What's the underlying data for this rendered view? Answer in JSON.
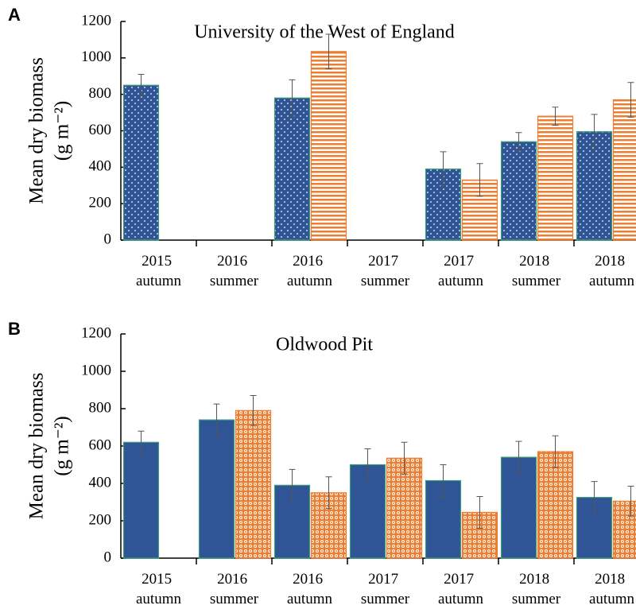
{
  "chart_data": [
    {
      "type": "bar",
      "panel": "A",
      "title": "University of the West of England",
      "ylabel": [
        "Mean dry biomass",
        "(g m⁻²)"
      ],
      "categories": [
        "2015 autumn",
        "2016 summer",
        "2016 autumn",
        "2017 summer",
        "2017 autumn",
        "2018 summer",
        "2018 autumn"
      ],
      "series": [
        {
          "color": "#2f5597",
          "pattern": "dots",
          "values": [
            850,
            null,
            780,
            null,
            390,
            540,
            595
          ],
          "errors": [
            60,
            null,
            100,
            null,
            95,
            50,
            95
          ]
        },
        {
          "color": "#ed7d31",
          "pattern": "hstripes",
          "values": [
            null,
            null,
            1035,
            null,
            330,
            680,
            770
          ],
          "errors": [
            null,
            null,
            95,
            null,
            90,
            50,
            95
          ]
        }
      ],
      "ylim": [
        0,
        1200
      ],
      "yticks": [
        0,
        200,
        400,
        600,
        800,
        1000,
        1200
      ]
    },
    {
      "type": "bar",
      "panel": "B",
      "title": "Oldwood Pit",
      "ylabel": [
        "Mean dry biomass",
        "(g m⁻²)"
      ],
      "categories": [
        "2015 autumn",
        "2016 summer",
        "2016 autumn",
        "2017 summer",
        "2017 autumn",
        "2018 summer",
        "2018 autumn"
      ],
      "series": [
        {
          "color": "#2f5597",
          "pattern": "solid",
          "values": [
            620,
            740,
            390,
            500,
            415,
            540,
            325
          ],
          "errors": [
            60,
            85,
            85,
            85,
            85,
            85,
            85
          ]
        },
        {
          "color": "#ed7d31",
          "pattern": "circles",
          "values": [
            null,
            790,
            350,
            535,
            245,
            570,
            305
          ],
          "errors": [
            null,
            80,
            85,
            85,
            85,
            85,
            80
          ]
        }
      ],
      "ylim": [
        0,
        1200
      ],
      "yticks": [
        0,
        200,
        400,
        600,
        800,
        1000,
        1200
      ]
    }
  ]
}
